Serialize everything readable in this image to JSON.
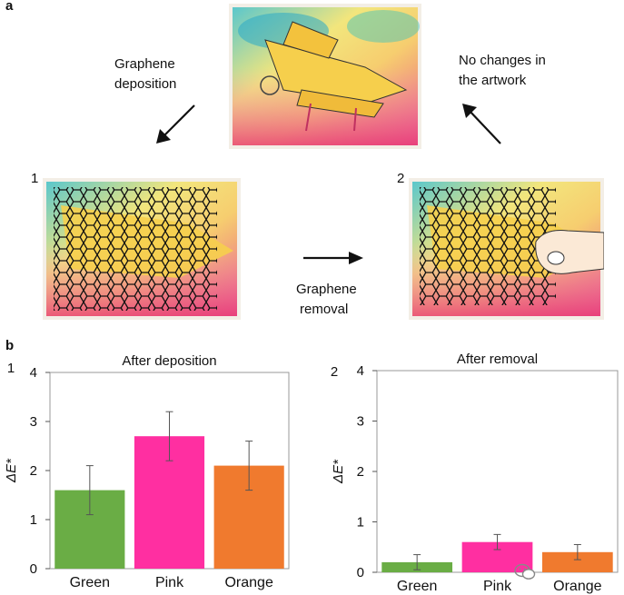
{
  "panel_a": {
    "label": "a",
    "deposition_caption_line1": "Graphene",
    "deposition_caption_line2": "deposition",
    "no_changes_line1": "No changes in",
    "no_changes_line2": "the artwork",
    "step1_number": "1",
    "step2_number": "2",
    "removal_caption_line1": "Graphene",
    "removal_caption_line2": "removal"
  },
  "panel_b": {
    "label": "b"
  },
  "colors": {
    "green": "#6aad45",
    "pink": "#ff2fa1",
    "orange": "#f07a2e"
  },
  "chart_data": [
    {
      "type": "bar",
      "panel_number": "1",
      "title": "After deposition",
      "ylabel": "ΔE*",
      "categories": [
        "Green",
        "Pink",
        "Orange"
      ],
      "values": [
        1.6,
        2.7,
        2.1
      ],
      "errors": [
        0.5,
        0.5,
        0.5
      ],
      "ylim": [
        0,
        4
      ],
      "yticks": [
        "0",
        "1",
        "2",
        "3",
        "4"
      ],
      "bar_colors": [
        "#6aad45",
        "#ff2fa1",
        "#f07a2e"
      ]
    },
    {
      "type": "bar",
      "panel_number": "2",
      "title": "After removal",
      "ylabel": "ΔE*",
      "categories": [
        "Green",
        "Pink",
        "Orange"
      ],
      "values": [
        0.2,
        0.6,
        0.4
      ],
      "errors": [
        0.15,
        0.15,
        0.15
      ],
      "ylim": [
        0,
        4
      ],
      "yticks": [
        "0",
        "1",
        "2",
        "3",
        "4"
      ],
      "bar_colors": [
        "#6aad45",
        "#ff2fa1",
        "#f07a2e"
      ]
    }
  ]
}
